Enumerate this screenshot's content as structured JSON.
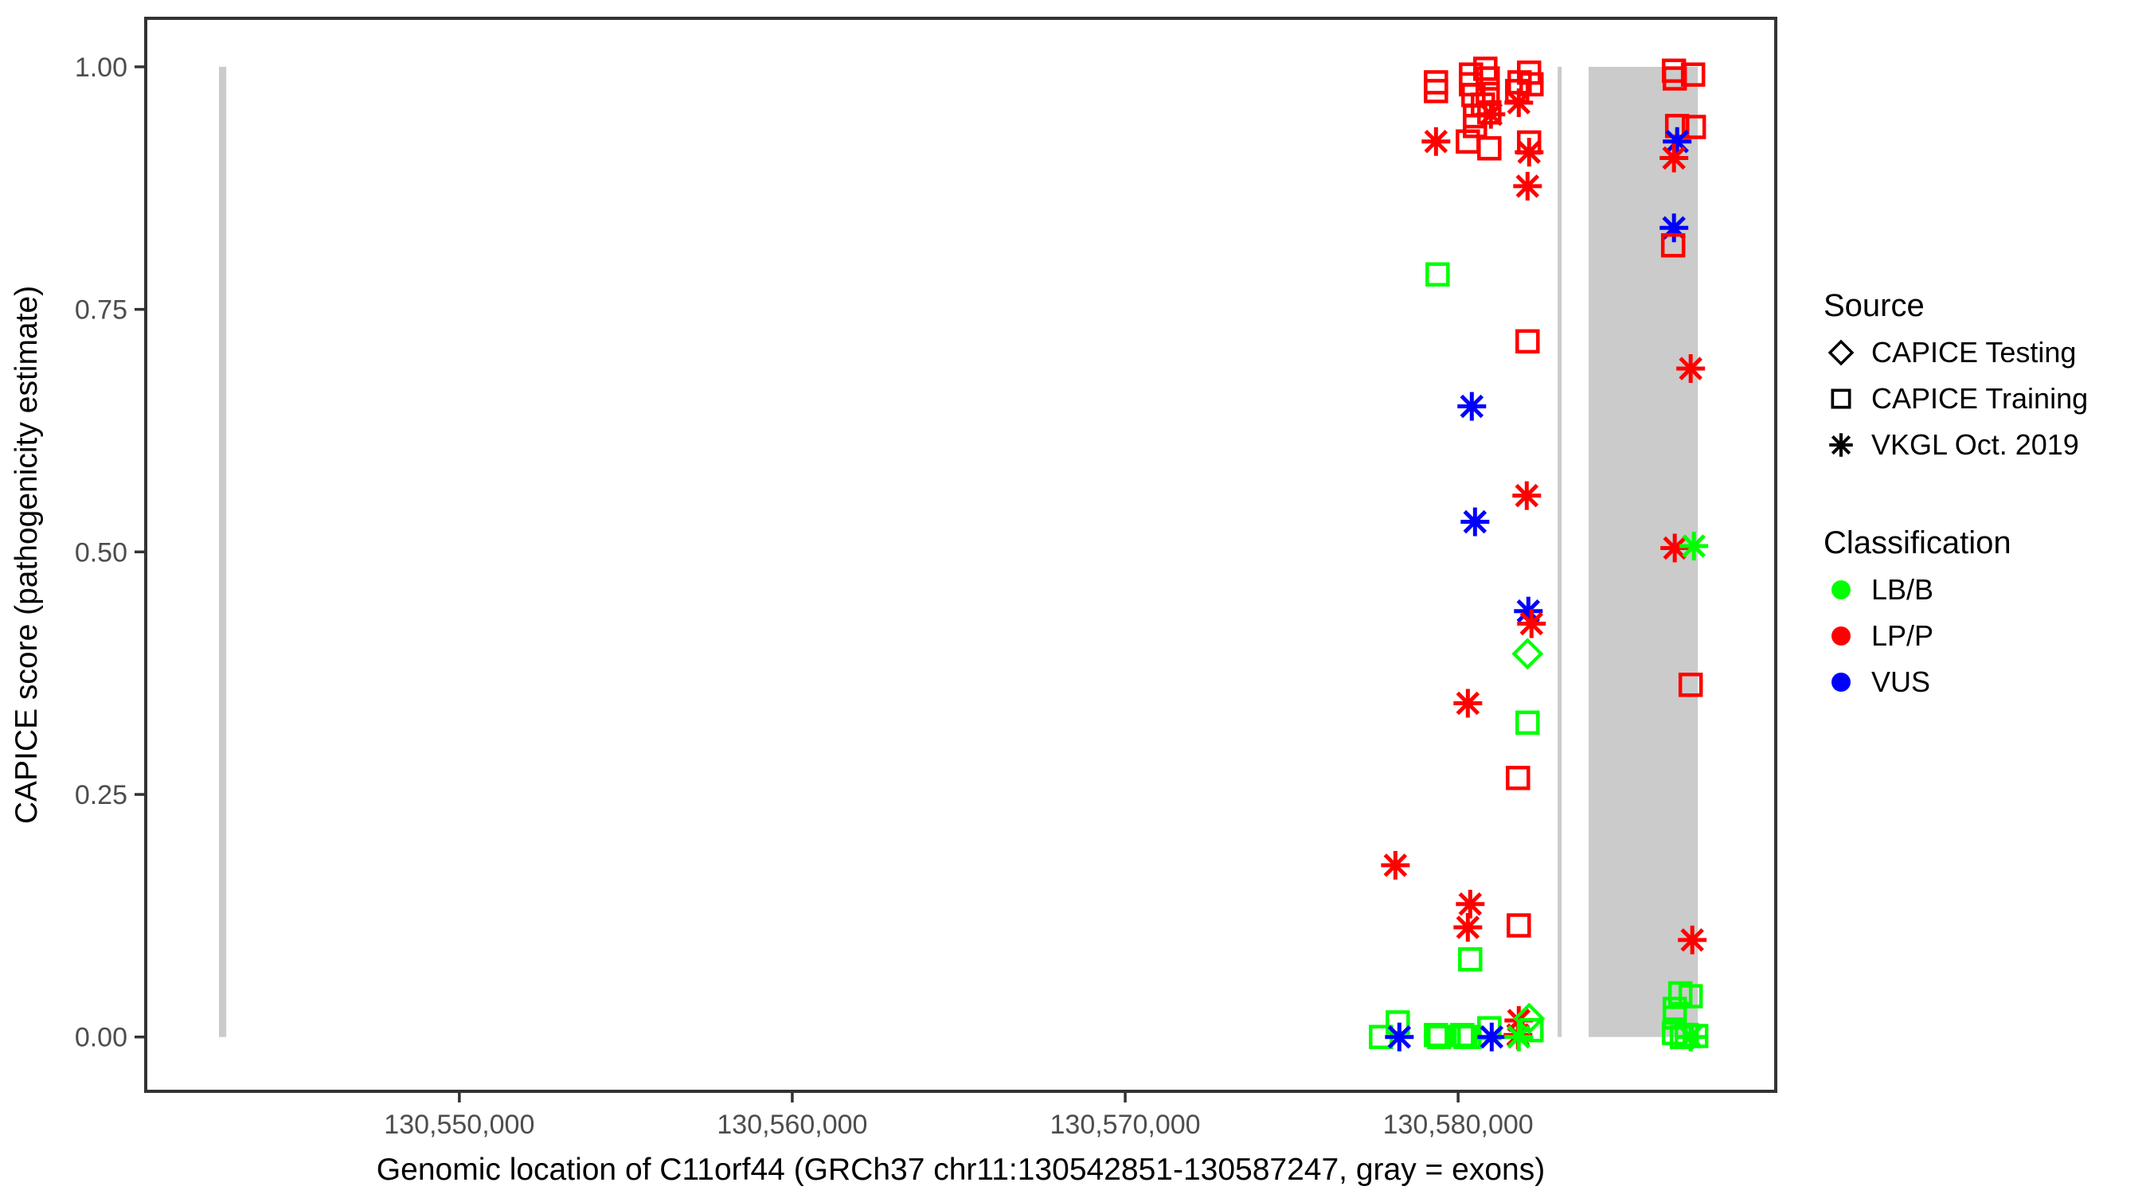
{
  "figure": {
    "background": "#FFFFFF"
  },
  "colors": {
    "LB/B": "#00FF00",
    "LP/P": "#FF0000",
    "VUS": "#0000FF",
    "exon": "#CBCBCB",
    "panel_border": "#333333",
    "tick_label": "#4D4D4D",
    "axis_title": "#000000",
    "legend_symbol": "#000000"
  },
  "chart_data": {
    "type": "scatter",
    "title": "",
    "xlabel": "Genomic location of C11orf44 (GRCh37 chr11:130542851-130587247, gray = exons)",
    "ylabel": "CAPICE score (pathogenicity estimate)",
    "x_domain": [
      130540580,
      130589540
    ],
    "y_domain": [
      -0.056,
      1.05
    ],
    "grid": false,
    "legend_position": "right",
    "x_ticks": [
      {
        "value": 130550000,
        "label": "130,550,000"
      },
      {
        "value": 130560000,
        "label": "130,560,000"
      },
      {
        "value": 130570000,
        "label": "130,570,000"
      },
      {
        "value": 130580000,
        "label": "130,580,000"
      }
    ],
    "y_ticks": [
      {
        "value": 0.0,
        "label": "0.00"
      },
      {
        "value": 0.25,
        "label": "0.25"
      },
      {
        "value": 0.5,
        "label": "0.50"
      },
      {
        "value": 0.75,
        "label": "0.75"
      },
      {
        "value": 1.0,
        "label": "1.00"
      }
    ],
    "exons_bp": [
      [
        130542780,
        130543000
      ],
      [
        130582990,
        130583110
      ],
      [
        130583920,
        130587200
      ]
    ],
    "exon_y_span": [
      0,
      1
    ],
    "points": [
      [
        130579335,
        0.984,
        "training",
        "LP/P"
      ],
      [
        130579335,
        0.975,
        "training",
        "LP/P"
      ],
      [
        130580387,
        0.992,
        "training",
        "LP/P"
      ],
      [
        130580817,
        0.998,
        "training",
        "LP/P"
      ],
      [
        130580889,
        0.988,
        "training",
        "LP/P"
      ],
      [
        130580387,
        0.982,
        "training",
        "LP/P"
      ],
      [
        130580459,
        0.971,
        "training",
        "LP/P"
      ],
      [
        130580889,
        0.972,
        "training",
        "LP/P"
      ],
      [
        130580745,
        0.961,
        "training",
        "LP/P"
      ],
      [
        130580937,
        0.953,
        "training",
        "LP/P"
      ],
      [
        130580985,
        0.951,
        "vkgl",
        "LP/P"
      ],
      [
        130580507,
        0.949,
        "training",
        "LP/P"
      ],
      [
        130580507,
        0.939,
        "training",
        "LP/P"
      ],
      [
        130582132,
        0.994,
        "training",
        "LP/P"
      ],
      [
        130581846,
        0.984,
        "training",
        "LP/P"
      ],
      [
        130582204,
        0.982,
        "training",
        "LP/P"
      ],
      [
        130581774,
        0.975,
        "training",
        "LP/P"
      ],
      [
        130581822,
        0.963,
        "vkgl",
        "LP/P"
      ],
      [
        130579335,
        0.923,
        "vkgl",
        "LP/P"
      ],
      [
        130580292,
        0.923,
        "training",
        "LP/P"
      ],
      [
        130580937,
        0.916,
        "training",
        "LP/P"
      ],
      [
        130582132,
        0.922,
        "training",
        "LP/P"
      ],
      [
        130582132,
        0.912,
        "vkgl",
        "LP/P"
      ],
      [
        130582085,
        0.877,
        "vkgl",
        "LP/P"
      ],
      [
        130586483,
        0.996,
        "training",
        "LP/P"
      ],
      [
        130586507,
        0.988,
        "training",
        "LP/P"
      ],
      [
        130587057,
        0.992,
        "training",
        "LP/P"
      ],
      [
        130586579,
        0.939,
        "training",
        "LP/P"
      ],
      [
        130587081,
        0.938,
        "training",
        "LP/P"
      ],
      [
        130586579,
        0.923,
        "vkgl",
        "VUS"
      ],
      [
        130586483,
        0.906,
        "vkgl",
        "LP/P"
      ],
      [
        130586483,
        0.834,
        "vkgl",
        "VUS"
      ],
      [
        130586459,
        0.816,
        "training",
        "LP/P"
      ],
      [
        130579383,
        0.786,
        "training",
        "LB/B"
      ],
      [
        130582085,
        0.717,
        "training",
        "LP/P"
      ],
      [
        130586985,
        0.689,
        "vkgl",
        "LP/P"
      ],
      [
        130580411,
        0.65,
        "vkgl",
        "VUS"
      ],
      [
        130582061,
        0.558,
        "vkgl",
        "LP/P"
      ],
      [
        130580507,
        0.531,
        "vkgl",
        "VUS"
      ],
      [
        130586507,
        0.504,
        "vkgl",
        "LP/P"
      ],
      [
        130587081,
        0.506,
        "vkgl",
        "LB/B"
      ],
      [
        130582109,
        0.439,
        "vkgl",
        "VUS"
      ],
      [
        130582204,
        0.426,
        "vkgl",
        "LP/P"
      ],
      [
        130582085,
        0.395,
        "testing",
        "LB/B"
      ],
      [
        130580292,
        0.344,
        "vkgl",
        "LP/P"
      ],
      [
        130586985,
        0.363,
        "training",
        "LP/P"
      ],
      [
        130582085,
        0.324,
        "training",
        "LB/B"
      ],
      [
        130581798,
        0.267,
        "training",
        "LP/P"
      ],
      [
        130578116,
        0.177,
        "vkgl",
        "LP/P"
      ],
      [
        130580363,
        0.137,
        "vkgl",
        "LP/P"
      ],
      [
        130580292,
        0.113,
        "vkgl",
        "LP/P"
      ],
      [
        130581822,
        0.115,
        "training",
        "LP/P"
      ],
      [
        130580363,
        0.08,
        "training",
        "LB/B"
      ],
      [
        130587033,
        0.1,
        "vkgl",
        "LP/P"
      ],
      [
        130586674,
        0.045,
        "training",
        "LB/B"
      ],
      [
        130586985,
        0.042,
        "training",
        "LB/B"
      ],
      [
        130586507,
        0.029,
        "training",
        "LB/B"
      ],
      [
        130586507,
        0.02,
        "training",
        "LB/B"
      ],
      [
        130586483,
        0.004,
        "training",
        "LB/B"
      ],
      [
        130586866,
        0.002,
        "training",
        "LB/B"
      ],
      [
        130587152,
        0.001,
        "training",
        "LB/B"
      ],
      [
        130586985,
        0.0,
        "vkgl",
        "LB/B"
      ],
      [
        130586722,
        0.0,
        "training",
        "LB/B"
      ],
      [
        130577685,
        0.0,
        "training",
        "LB/B"
      ],
      [
        130578187,
        0.015,
        "training",
        "LB/B"
      ],
      [
        130578235,
        0.0,
        "vkgl",
        "VUS"
      ],
      [
        130579335,
        0.002,
        "training",
        "LB/B"
      ],
      [
        130579431,
        0.0,
        "training",
        "LB/B"
      ],
      [
        130580124,
        0.002,
        "training",
        "LB/B"
      ],
      [
        130580339,
        0.0,
        "training",
        "LB/B"
      ],
      [
        130580220,
        0.0,
        "training",
        "LB/B"
      ],
      [
        130580937,
        0.009,
        "training",
        "LB/B"
      ],
      [
        130581009,
        0.0,
        "vkgl",
        "VUS"
      ],
      [
        130581822,
        0.017,
        "vkgl",
        "LP/P"
      ],
      [
        130581798,
        0.002,
        "vkgl",
        "LP/P"
      ],
      [
        130581822,
        0.0,
        "vkgl",
        "LB/B"
      ],
      [
        130582132,
        0.019,
        "testing",
        "LB/B"
      ],
      [
        130582204,
        0.007,
        "training",
        "LB/B"
      ]
    ]
  },
  "legend": {
    "source": {
      "title": "Source",
      "items": [
        {
          "label": "CAPICE Testing",
          "marker": "testing"
        },
        {
          "label": "CAPICE Training",
          "marker": "training"
        },
        {
          "label": "VKGL Oct. 2019",
          "marker": "vkgl"
        }
      ]
    },
    "classification": {
      "title": "Classification",
      "items": [
        {
          "label": "LB/B",
          "color_key": "LB/B"
        },
        {
          "label": "LP/P",
          "color_key": "LP/P"
        },
        {
          "label": "VUS",
          "color_key": "VUS"
        }
      ]
    }
  }
}
